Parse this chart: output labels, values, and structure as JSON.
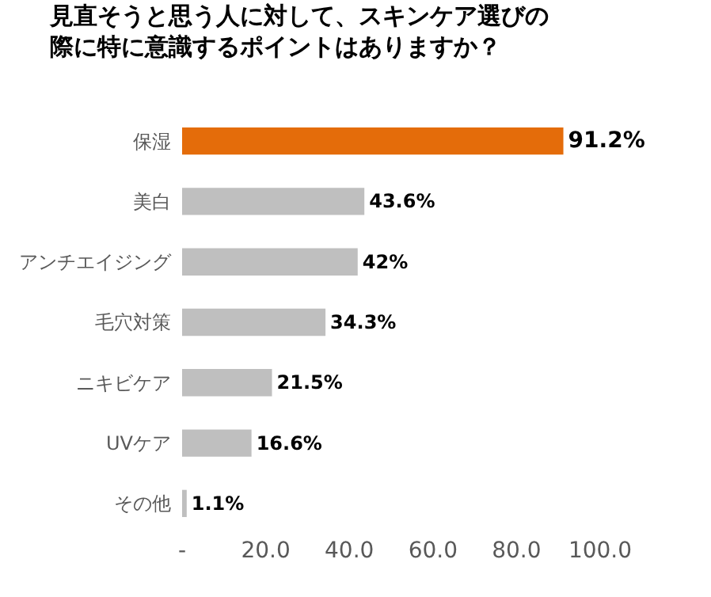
{
  "chart_data": {
    "type": "bar",
    "orientation": "horizontal",
    "title": "見直そうと思う人に対して、スキンケア選びの際に特に意識するポイントはありますか？",
    "categories": [
      "保湿",
      "美白",
      "アンチエイジング",
      "毛穴対策",
      "ニキビケア",
      "UVケア",
      "その他"
    ],
    "values": [
      91.2,
      43.6,
      42,
      34.3,
      21.5,
      16.6,
      1.1
    ],
    "colors": [
      "#e46c0a",
      "#bfbfbf",
      "#bfbfbf",
      "#bfbfbf",
      "#bfbfbf",
      "#bfbfbf",
      "#bfbfbf"
    ],
    "value_labels": [
      "91.2%",
      "43.6%",
      "42%",
      "34.3%",
      "21.5%",
      "16.6%",
      "1.1%"
    ],
    "xlim": [
      0,
      100
    ],
    "xticks": [
      {
        "value": 0,
        "label": "-"
      },
      {
        "value": 20,
        "label": "20.0"
      },
      {
        "value": 40,
        "label": "40.0"
      },
      {
        "value": 60,
        "label": "60.0"
      },
      {
        "value": 80,
        "label": "80.0"
      },
      {
        "value": 100,
        "label": "100.0"
      }
    ]
  }
}
